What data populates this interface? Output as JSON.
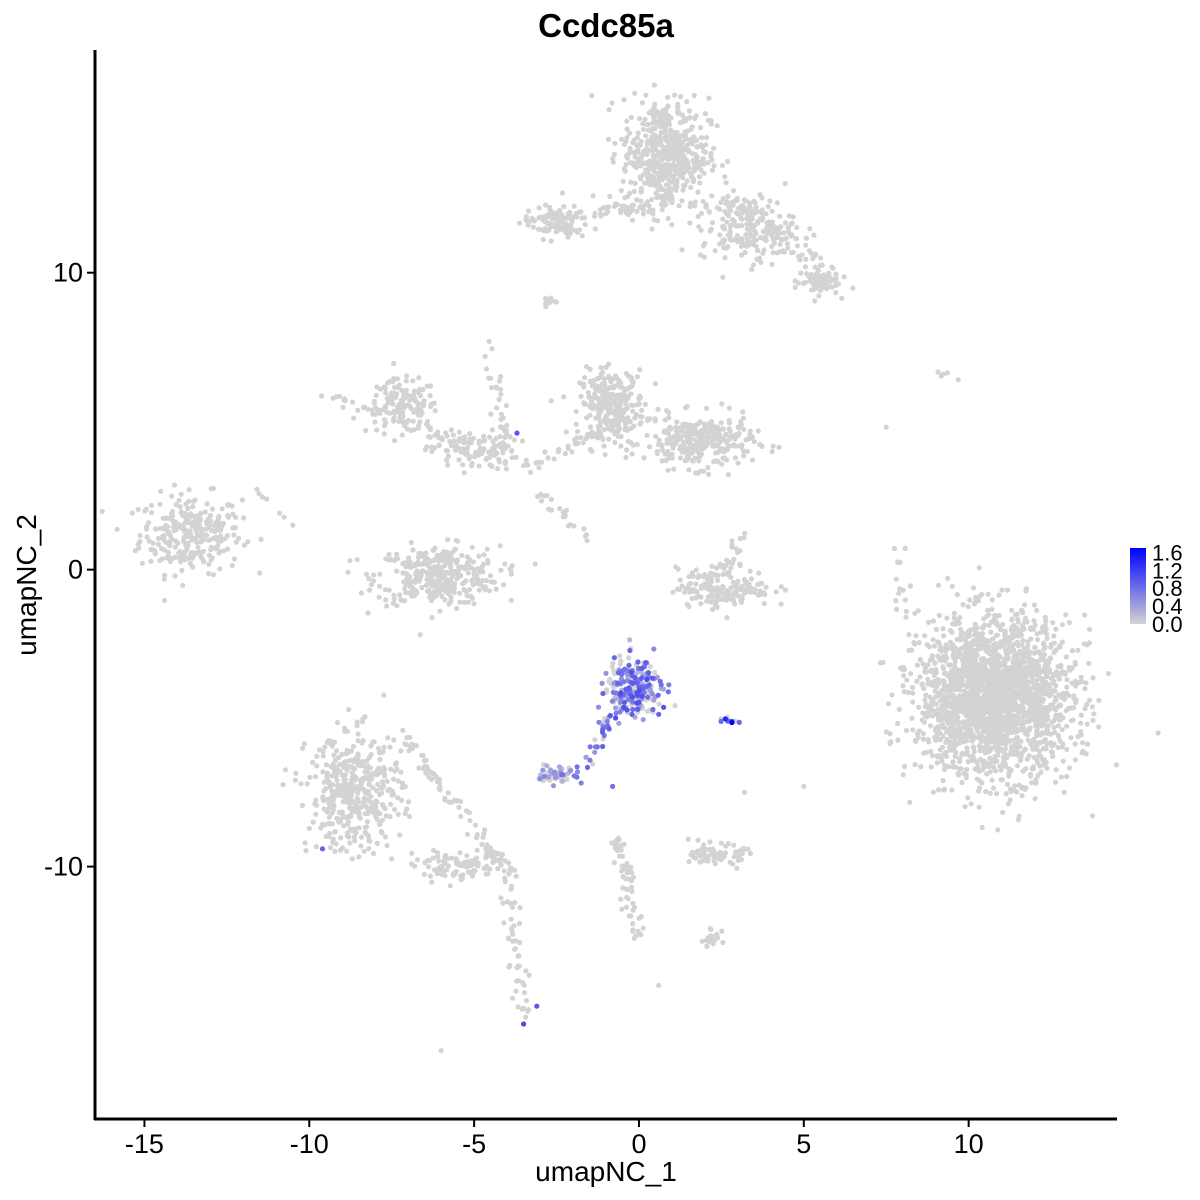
{
  "chart_data": {
    "type": "scatter",
    "title": "Ccdc85a",
    "xlabel": "umapNC_1",
    "ylabel": "umapNC_2",
    "xlim": [
      -16.5,
      14.5
    ],
    "ylim": [
      -18.5,
      17.5
    ],
    "x_ticks": [
      "-15",
      "-10",
      "-5",
      "0",
      "5",
      "10"
    ],
    "y_ticks": [
      "-10",
      "0",
      "10"
    ],
    "grid": false,
    "legend": {
      "placement": "right",
      "labels": [
        "1.6",
        "1.2",
        "0.8",
        "0.4",
        "0.0"
      ],
      "values": [
        1.6,
        1.2,
        0.8,
        0.4,
        0.0
      ],
      "color_low": "#d3d3d3",
      "color_high": "#0000ff",
      "range": [
        0,
        1.7
      ]
    },
    "clusters": [
      {
        "cx": -13.6,
        "cy": 1.2,
        "rx": 1.4,
        "ry": 1.2,
        "n": 280,
        "expr": 0
      },
      {
        "cx": -7.2,
        "cy": 5.5,
        "rx": 1.0,
        "ry": 0.8,
        "n": 140,
        "expr": 0
      },
      {
        "cx": -6.1,
        "cy": -0.2,
        "rx": 1.7,
        "ry": 0.9,
        "n": 350,
        "expr": 0
      },
      {
        "cx": -5.0,
        "cy": 4.0,
        "rx": 1.2,
        "ry": 0.6,
        "n": 110,
        "expr": 0
      },
      {
        "cx": -0.8,
        "cy": 5.6,
        "rx": 0.9,
        "ry": 1.0,
        "n": 260,
        "expr": 0
      },
      {
        "cx": 1.8,
        "cy": 4.3,
        "rx": 1.5,
        "ry": 0.8,
        "n": 290,
        "expr": 0
      },
      {
        "cx": 0.8,
        "cy": 14.0,
        "rx": 1.2,
        "ry": 1.7,
        "n": 520,
        "expr": 0
      },
      {
        "cx": 3.3,
        "cy": 11.5,
        "rx": 1.3,
        "ry": 1.0,
        "n": 200,
        "expr": 0
      },
      {
        "cx": 5.4,
        "cy": 9.7,
        "rx": 0.6,
        "ry": 0.4,
        "n": 70,
        "expr": 0
      },
      {
        "cx": -2.5,
        "cy": 11.7,
        "rx": 0.9,
        "ry": 0.5,
        "n": 110,
        "expr": 0
      },
      {
        "cx": 2.6,
        "cy": -0.6,
        "rx": 1.3,
        "ry": 0.6,
        "n": 170,
        "expr": 0
      },
      {
        "cx": 10.8,
        "cy": -4.3,
        "rx": 2.1,
        "ry": 2.4,
        "n": 2200,
        "expr": 0
      },
      {
        "cx": -8.6,
        "cy": -7.5,
        "rx": 1.3,
        "ry": 1.8,
        "n": 420,
        "expr": 0
      },
      {
        "cx": -5.5,
        "cy": -10.0,
        "rx": 1.2,
        "ry": 0.4,
        "n": 90,
        "expr": 0
      },
      {
        "cx": -0.1,
        "cy": -4.0,
        "rx": 0.8,
        "ry": 0.9,
        "n": 230,
        "expr": 0.55
      },
      {
        "cx": -2.5,
        "cy": -6.9,
        "rx": 0.5,
        "ry": 0.25,
        "n": 60,
        "expr": 0.4
      },
      {
        "cx": 2.4,
        "cy": -9.6,
        "rx": 0.7,
        "ry": 0.3,
        "n": 80,
        "expr": 0
      },
      {
        "cx": 2.2,
        "cy": -12.4,
        "rx": 0.3,
        "ry": 0.25,
        "n": 20,
        "expr": 0
      },
      {
        "cx": 2.8,
        "cy": -5.1,
        "rx": 0.3,
        "ry": 0.1,
        "n": 12,
        "expr": 1.0
      }
    ],
    "paths": [
      {
        "from": [
          -9.8,
          6.0
        ],
        "to": [
          -5.0,
          4.2
        ],
        "n": 40,
        "expr": 0
      },
      {
        "from": [
          -4.5,
          7.5
        ],
        "to": [
          -4.0,
          4.0
        ],
        "n": 30,
        "expr": 0
      },
      {
        "from": [
          -3.5,
          3.5
        ],
        "to": [
          -0.3,
          5.0
        ],
        "n": 50,
        "expr": 0
      },
      {
        "from": [
          -3.0,
          2.5
        ],
        "to": [
          -1.5,
          1.0
        ],
        "n": 20,
        "expr": 0
      },
      {
        "from": [
          -1.5,
          12.0
        ],
        "to": [
          1.0,
          12.3
        ],
        "n": 40,
        "expr": 0
      },
      {
        "from": [
          1.0,
          12.3
        ],
        "to": [
          0.6,
          13.2
        ],
        "n": 15,
        "expr": 0
      },
      {
        "from": [
          2.6,
          12.5
        ],
        "to": [
          5.8,
          10.0
        ],
        "n": 60,
        "expr": 0
      },
      {
        "from": [
          -7.2,
          -5.5
        ],
        "to": [
          -4.0,
          -10.2
        ],
        "n": 90,
        "expr": 0
      },
      {
        "from": [
          -4.0,
          -10.3
        ],
        "to": [
          -3.5,
          -15.0
        ],
        "n": 50,
        "expr": 0
      },
      {
        "from": [
          -0.8,
          -4.8
        ],
        "to": [
          -1.6,
          -6.5
        ],
        "n": 25,
        "expr": 0.6
      },
      {
        "from": [
          -0.7,
          -9.0
        ],
        "to": [
          0.0,
          -12.3
        ],
        "n": 60,
        "expr": 0
      },
      {
        "from": [
          2.0,
          -0.5
        ],
        "to": [
          3.3,
          1.2
        ],
        "n": 25,
        "expr": 0
      },
      {
        "from": [
          7.9,
          0.8
        ],
        "to": [
          8.0,
          -1.8
        ],
        "n": 15,
        "expr": 0
      },
      {
        "from": [
          -11.5,
          2.8
        ],
        "to": [
          -11.0,
          1.6
        ],
        "n": 6,
        "expr": 0
      },
      {
        "from": [
          -2.8,
          8.9
        ],
        "to": [
          -2.5,
          9.3
        ],
        "n": 8,
        "expr": 0
      },
      {
        "from": [
          9.2,
          6.6
        ],
        "to": [
          9.6,
          6.7
        ],
        "n": 5,
        "expr": 0
      }
    ],
    "points": [
      {
        "x": -3.7,
        "y": 4.6,
        "v": 1.0
      },
      {
        "x": -9.6,
        "y": -9.4,
        "v": 0.9
      },
      {
        "x": -3.5,
        "y": -15.3,
        "v": 1.1
      },
      {
        "x": -3.1,
        "y": -14.7,
        "v": 1.0
      },
      {
        "x": -0.8,
        "y": -7.3,
        "v": 0.8
      },
      {
        "x": -6.0,
        "y": -16.2,
        "v": 0
      },
      {
        "x": 0.6,
        "y": -14.0,
        "v": 0
      },
      {
        "x": 3.2,
        "y": -7.5,
        "v": 0
      },
      {
        "x": 5.0,
        "y": -7.3,
        "v": 0
      },
      {
        "x": 7.5,
        "y": 4.8,
        "v": 0
      },
      {
        "x": 8.1,
        "y": -1.6,
        "v": 0
      },
      {
        "x": -10.5,
        "y": 1.5,
        "v": 0
      },
      {
        "x": -2.2,
        "y": 2.0,
        "v": 0
      }
    ]
  }
}
